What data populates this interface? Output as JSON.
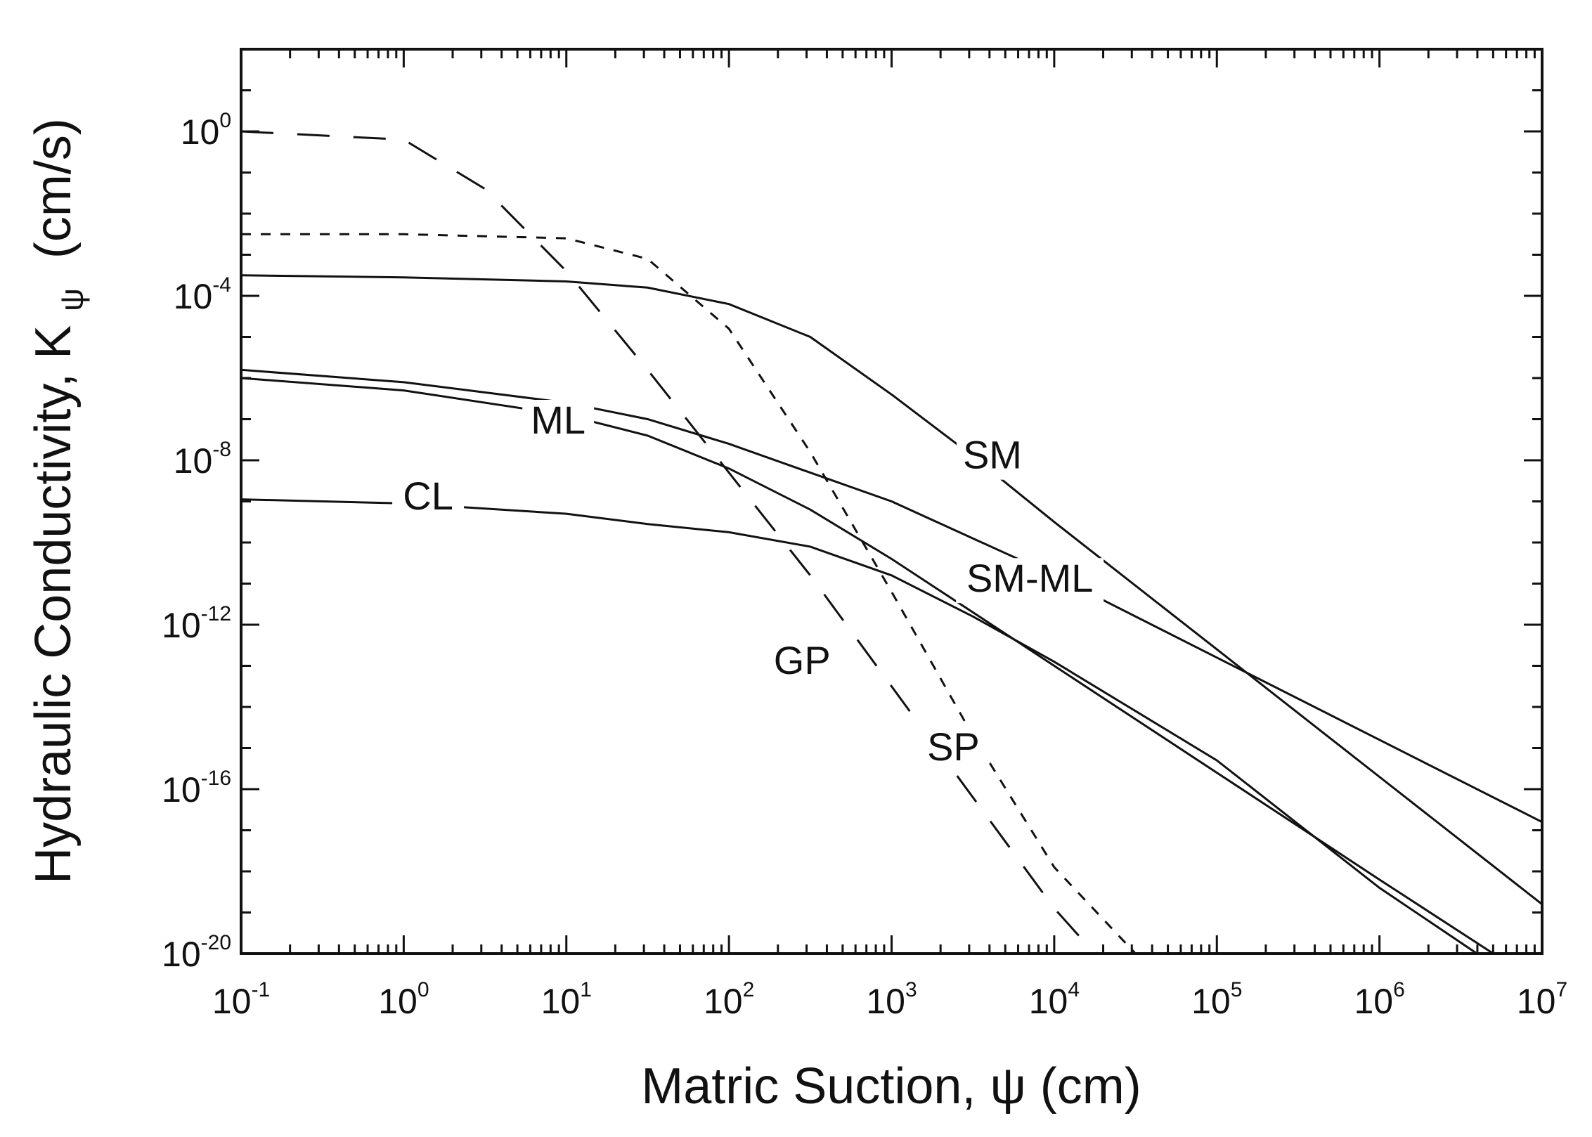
{
  "chart_data": {
    "type": "line",
    "title": "",
    "xlabel": "Matric Suction, ψ (cm)",
    "ylabel": "Hydraulic Conductivity, Kψ (cm/s)",
    "ylabel_parts": {
      "main": "Hydraulic Conductivity, K",
      "sub": "ψ",
      "unit": "(cm/s)"
    },
    "xscale": "log",
    "yscale": "log",
    "xlim_exp": [
      -1,
      7
    ],
    "ylim_exp": [
      -20,
      2
    ],
    "grid": false,
    "x_ticks": [
      {
        "base": "10",
        "exp": "-1",
        "value_exp": -1
      },
      {
        "base": "10",
        "exp": "0",
        "value_exp": 0
      },
      {
        "base": "10",
        "exp": "1",
        "value_exp": 1
      },
      {
        "base": "10",
        "exp": "2",
        "value_exp": 2
      },
      {
        "base": "10",
        "exp": "3",
        "value_exp": 3
      },
      {
        "base": "10",
        "exp": "4",
        "value_exp": 4
      },
      {
        "base": "10",
        "exp": "5",
        "value_exp": 5
      },
      {
        "base": "10",
        "exp": "6",
        "value_exp": 6
      },
      {
        "base": "10",
        "exp": "7",
        "value_exp": 7
      }
    ],
    "y_ticks": [
      {
        "base": "10",
        "exp": "0",
        "value_exp": 0
      },
      {
        "base": "10",
        "exp": "-4",
        "value_exp": -4
      },
      {
        "base": "10",
        "exp": "-8",
        "value_exp": -8
      },
      {
        "base": "10",
        "exp": "-12",
        "value_exp": -12
      },
      {
        "base": "10",
        "exp": "-16",
        "value_exp": -16
      },
      {
        "base": "10",
        "exp": "-20",
        "value_exp": -20
      }
    ],
    "series": [
      {
        "name": "GP",
        "dash": "long-dash",
        "x_log": [
          -1,
          0,
          0.5,
          1,
          1.5,
          2,
          2.5,
          3,
          3.5,
          4,
          4.25
        ],
        "y_log": [
          0,
          -0.2,
          -1.4,
          -3.4,
          -5.8,
          -8.3,
          -10.8,
          -13.5,
          -16.2,
          -18.9,
          -20
        ],
        "label_at": {
          "x_log": 2.45,
          "y_log": -13.2
        }
      },
      {
        "name": "SP",
        "dash": "short-dash",
        "x_log": [
          -1,
          0,
          1,
          1.5,
          2,
          2.5,
          3,
          3.5,
          4,
          4.5
        ],
        "y_log": [
          -2.5,
          -2.5,
          -2.6,
          -3.1,
          -4.8,
          -7.8,
          -11.2,
          -14.7,
          -17.9,
          -20
        ],
        "label_at": {
          "x_log": 3.38,
          "y_log": -15.3
        }
      },
      {
        "name": "SM",
        "dash": "solid",
        "x_log": [
          -1,
          0,
          1,
          1.5,
          2,
          2.5,
          3,
          3.5,
          4,
          5,
          6,
          7
        ],
        "y_log": [
          -3.5,
          -3.55,
          -3.65,
          -3.8,
          -4.2,
          -5.0,
          -6.4,
          -7.9,
          -9.5,
          -12.6,
          -15.7,
          -18.8
        ],
        "label_at": {
          "x_log": 3.62,
          "y_log": -8.2
        }
      },
      {
        "name": "SM-ML",
        "dash": "solid",
        "x_log": [
          -1,
          0,
          1,
          1.5,
          2,
          2.5,
          3,
          3.5,
          4,
          5,
          6,
          7
        ],
        "y_log": [
          -5.8,
          -6.1,
          -6.6,
          -7.0,
          -7.6,
          -8.3,
          -9.0,
          -9.9,
          -10.8,
          -12.8,
          -14.8,
          -16.8
        ],
        "label_at": {
          "x_log": 3.85,
          "y_log": -11.2
        }
      },
      {
        "name": "ML",
        "dash": "solid",
        "x_log": [
          -1,
          0,
          1,
          1.5,
          2,
          2.5,
          3,
          3.5,
          4,
          5,
          6,
          6.7
        ],
        "y_log": [
          -6.0,
          -6.3,
          -6.9,
          -7.4,
          -8.2,
          -9.2,
          -10.4,
          -11.7,
          -13.0,
          -15.6,
          -18.2,
          -20
        ],
        "label_at": {
          "x_log": 0.95,
          "y_log": -7.35
        }
      },
      {
        "name": "CL",
        "dash": "solid",
        "x_log": [
          -1,
          0,
          1,
          1.5,
          2,
          2.5,
          3,
          3.5,
          4,
          5,
          6,
          6.6
        ],
        "y_log": [
          -8.95,
          -9.05,
          -9.3,
          -9.55,
          -9.75,
          -10.1,
          -10.8,
          -11.8,
          -12.9,
          -15.3,
          -18.4,
          -20
        ],
        "label_at": {
          "x_log": 0.15,
          "y_log": -9.2
        }
      }
    ]
  }
}
